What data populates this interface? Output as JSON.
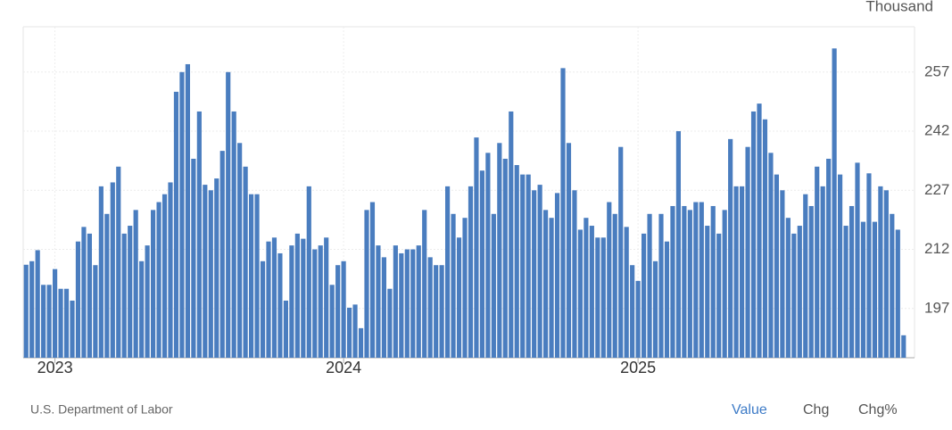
{
  "chart_data": {
    "type": "bar",
    "unit_label": "Thousand",
    "source": "U.S. Department of Labor",
    "buttons": [
      "Value",
      "Chg",
      "Chg%"
    ],
    "color": "#4a7dbf",
    "grid": true,
    "ylim": [
      184.5,
      268.5
    ],
    "yticks": [
      197,
      212,
      227,
      242,
      257
    ],
    "categories": [
      null,
      null,
      null,
      null,
      null,
      "2023",
      null,
      null,
      null,
      null,
      null,
      null,
      null,
      null,
      null,
      null,
      null,
      null,
      null,
      null,
      null,
      null,
      null,
      null,
      null,
      null,
      null,
      null,
      null,
      null,
      null,
      null,
      null,
      null,
      null,
      null,
      null,
      null,
      null,
      null,
      null,
      null,
      null,
      null,
      null,
      null,
      null,
      null,
      null,
      null,
      null,
      null,
      null,
      null,
      null,
      "2024",
      null,
      null,
      null,
      null,
      null,
      null,
      null,
      null,
      null,
      null,
      null,
      null,
      null,
      null,
      null,
      null,
      null,
      null,
      null,
      null,
      null,
      null,
      null,
      null,
      null,
      null,
      null,
      null,
      null,
      null,
      null,
      null,
      null,
      null,
      null,
      null,
      null,
      null,
      null,
      null,
      null,
      null,
      null,
      null,
      null,
      null,
      null,
      null,
      null,
      null,
      "2025",
      null,
      null,
      null,
      null,
      null,
      null,
      null,
      null,
      null,
      null,
      null,
      null,
      null,
      null,
      null,
      null,
      null,
      null,
      null,
      null,
      null,
      null,
      null,
      null,
      null,
      null,
      null,
      null,
      null,
      null,
      null,
      null,
      null,
      null,
      null,
      null,
      null,
      null,
      null,
      null,
      null,
      null,
      null,
      null,
      null,
      null
    ],
    "values": [
      208.1,
      209,
      211.8,
      203,
      203,
      207,
      202,
      202,
      199,
      214,
      217.7,
      216,
      208,
      228,
      221,
      229,
      233,
      216,
      218,
      222,
      209,
      213,
      222,
      224,
      226,
      229,
      252,
      257,
      259,
      235,
      247,
      228.4,
      227,
      230,
      237,
      257,
      247,
      239,
      233,
      226,
      226,
      209,
      214,
      215,
      211,
      199,
      213,
      216,
      214.7,
      228,
      212,
      213,
      215,
      203,
      208,
      209,
      197.2,
      198,
      192,
      222,
      224,
      213,
      210,
      202,
      213,
      211,
      212,
      212,
      213,
      222,
      210,
      208,
      208,
      228,
      221,
      215,
      220,
      228,
      240.4,
      232,
      236.5,
      221,
      239,
      235,
      247,
      233.4,
      231,
      231,
      227,
      228.4,
      222,
      220,
      226.3,
      258,
      239,
      227,
      217,
      220,
      218,
      215,
      215,
      224,
      221,
      238,
      217.7,
      208,
      204,
      216,
      221,
      209,
      221,
      214,
      223,
      242,
      223,
      222,
      224,
      224,
      218,
      223,
      216,
      222,
      240,
      228,
      228,
      238,
      247,
      249,
      245,
      236.5,
      231,
      227,
      220,
      216,
      218,
      226,
      223,
      233,
      228,
      235,
      263,
      231,
      218,
      223,
      234,
      219,
      231.3,
      219,
      228,
      227,
      221,
      217,
      190.2
    ]
  }
}
